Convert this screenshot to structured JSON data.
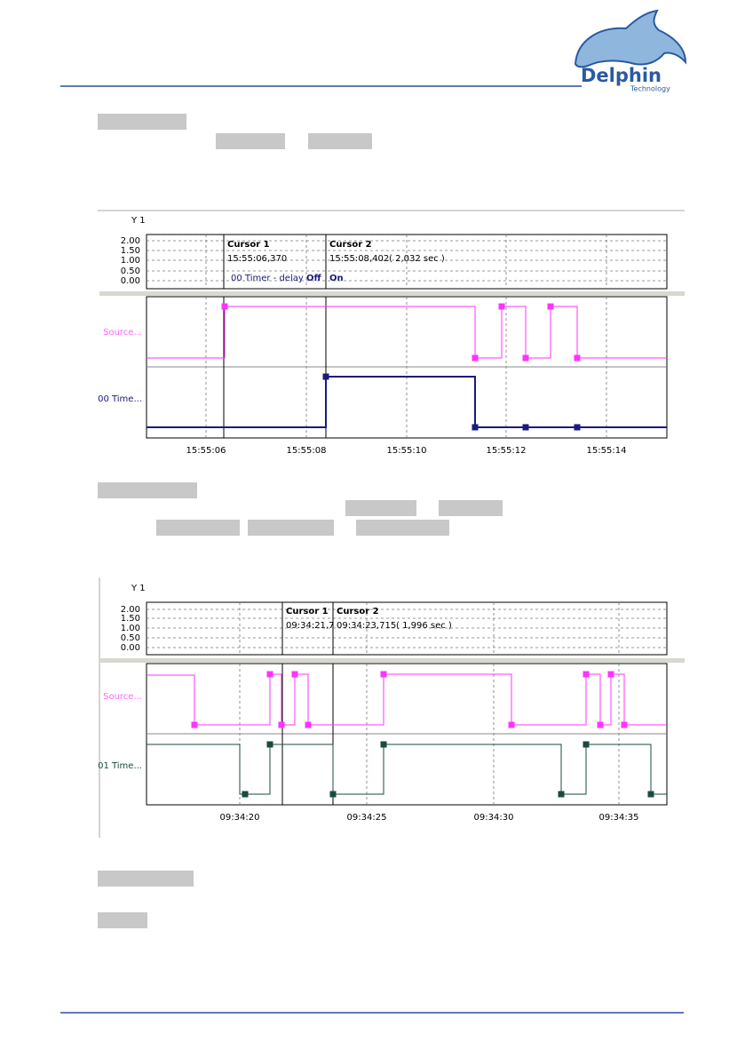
{
  "header": {
    "logo": "Delphin",
    "logo_sub": "Technology"
  },
  "screenshots": [
    {
      "axis_title": "Y 1",
      "yticks": [
        "2.00",
        "1.50",
        "1.00",
        "0.50",
        "0.00"
      ],
      "cursor1": {
        "title": "Cursor 1",
        "time": "15:55:06,370",
        "state": "Off"
      },
      "cursor2": {
        "title": "Cursor 2",
        "time": "15:55:08,402",
        "delta": "( 2,032 sec )",
        "state": "On"
      },
      "channel_label": "00 Timer - delay",
      "traces": [
        "Source...",
        "00 Time..."
      ],
      "xticks": [
        "15:55:06",
        "15:55:08",
        "15:55:10",
        "15:55:12",
        "15:55:14"
      ]
    },
    {
      "axis_title": "Y 1",
      "yticks": [
        "2.00",
        "1.50",
        "1.00",
        "0.50",
        "0.00"
      ],
      "cursor1": {
        "title": "Cursor 1",
        "time": "09:34:21,7"
      },
      "cursor2": {
        "title": "Cursor 2",
        "time": "09:34:23,715",
        "delta": "( 1,996 sec )"
      },
      "traces": [
        "Source...",
        "01 Time..."
      ],
      "xticks": [
        "09:34:20",
        "09:34:25",
        "09:34:30",
        "09:34:35"
      ]
    }
  ]
}
